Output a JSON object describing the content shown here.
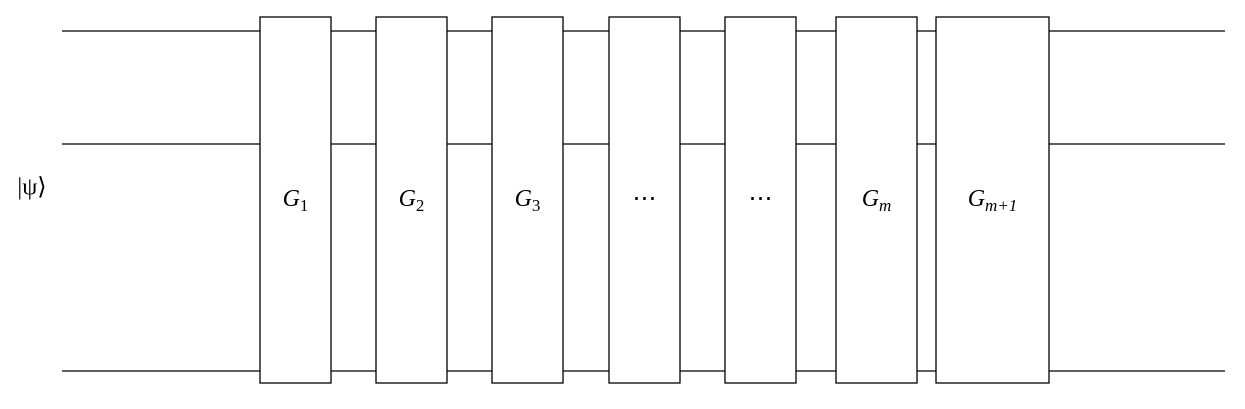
{
  "input_state": "|ψ⟩",
  "gates": [
    {
      "label": "G",
      "subscript": "1"
    },
    {
      "label": "G",
      "subscript": "2"
    },
    {
      "label": "G",
      "subscript": "3"
    },
    {
      "label": "⋯"
    },
    {
      "label": "⋯"
    },
    {
      "label": "G",
      "subscript": "m"
    },
    {
      "label": "G",
      "subscript": "m+1"
    }
  ]
}
